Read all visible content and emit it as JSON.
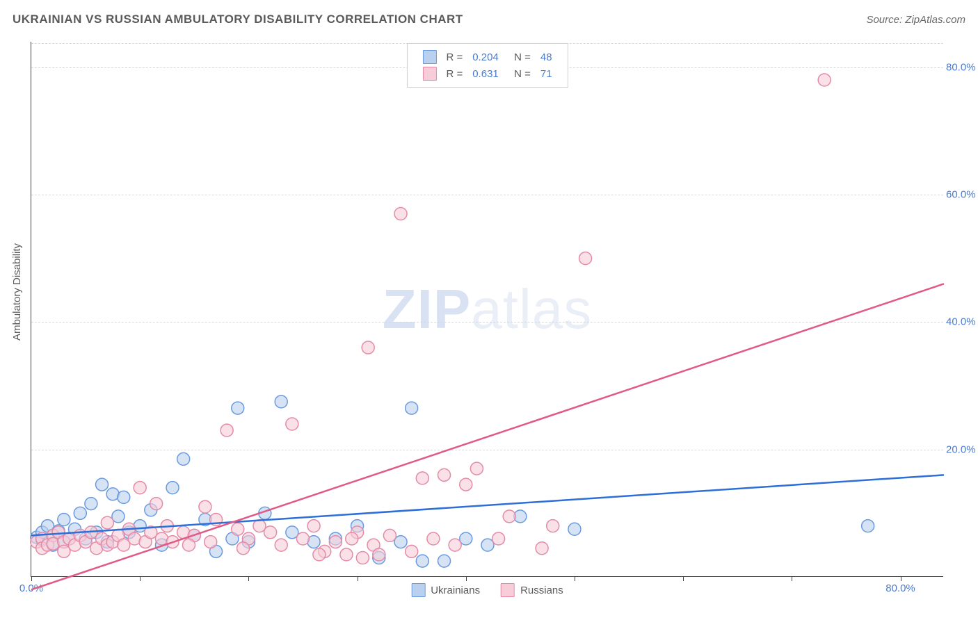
{
  "title": "UKRAINIAN VS RUSSIAN AMBULATORY DISABILITY CORRELATION CHART",
  "source_label": "Source: ZipAtlas.com",
  "y_axis_title": "Ambulatory Disability",
  "watermark_prefix": "ZIP",
  "watermark_suffix": "atlas",
  "chart": {
    "type": "scatter",
    "xlim": [
      0,
      84
    ],
    "ylim": [
      0,
      84
    ],
    "x_ticks": [
      0,
      10,
      20,
      30,
      40,
      50,
      60,
      70,
      80
    ],
    "x_tick_labels": {
      "0": "0.0%",
      "80": "80.0%"
    },
    "y_ticks": [
      20,
      40,
      60,
      80
    ],
    "y_tick_labels": {
      "20": "20.0%",
      "40": "40.0%",
      "60": "60.0%",
      "80": "80.0%"
    },
    "grid_color": "#d8d8d8",
    "axis_color": "#424242",
    "label_color": "#4a7bd0",
    "background_color": "#ffffff",
    "marker_radius": 9,
    "marker_stroke_width": 1.5,
    "line_width": 2.5,
    "series": [
      {
        "name": "Ukrainians",
        "fill_color": "#b9d0ef",
        "stroke_color": "#6a9ae0",
        "line_color": "#2d6fd6",
        "R": "0.204",
        "N": "48",
        "trend": {
          "x1": 0,
          "y1": 6.5,
          "x2": 84,
          "y2": 16.0
        },
        "points": [
          [
            0.5,
            6.2
          ],
          [
            1.0,
            5.8
          ],
          [
            1.0,
            7.0
          ],
          [
            1.5,
            8.0
          ],
          [
            2.0,
            5.0
          ],
          [
            2.0,
            6.5
          ],
          [
            2.5,
            7.2
          ],
          [
            3.0,
            5.5
          ],
          [
            3.0,
            9.0
          ],
          [
            3.5,
            6.0
          ],
          [
            4.0,
            7.5
          ],
          [
            4.5,
            10.0
          ],
          [
            5.0,
            6.0
          ],
          [
            5.5,
            11.5
          ],
          [
            6.0,
            7.0
          ],
          [
            6.5,
            14.5
          ],
          [
            7.0,
            5.5
          ],
          [
            7.5,
            13.0
          ],
          [
            8.0,
            9.5
          ],
          [
            8.5,
            12.5
          ],
          [
            9.0,
            7.0
          ],
          [
            10.0,
            8.0
          ],
          [
            11.0,
            10.5
          ],
          [
            12.0,
            5.0
          ],
          [
            13.0,
            14.0
          ],
          [
            14.0,
            18.5
          ],
          [
            15.0,
            6.5
          ],
          [
            16.0,
            9.0
          ],
          [
            17.0,
            4.0
          ],
          [
            18.5,
            6.0
          ],
          [
            19.0,
            26.5
          ],
          [
            20.0,
            5.5
          ],
          [
            21.5,
            10.0
          ],
          [
            23.0,
            27.5
          ],
          [
            24.0,
            7.0
          ],
          [
            26.0,
            5.5
          ],
          [
            28.0,
            6.0
          ],
          [
            30.0,
            8.0
          ],
          [
            32.0,
            3.0
          ],
          [
            34.0,
            5.5
          ],
          [
            35.0,
            26.5
          ],
          [
            36.0,
            2.5
          ],
          [
            38.0,
            2.5
          ],
          [
            40.0,
            6.0
          ],
          [
            42.0,
            5.0
          ],
          [
            45.0,
            9.5
          ],
          [
            50.0,
            7.5
          ],
          [
            77.0,
            8.0
          ]
        ]
      },
      {
        "name": "Russians",
        "fill_color": "#f7cdd9",
        "stroke_color": "#e58aa6",
        "line_color": "#e05a85",
        "R": "0.631",
        "N": "71",
        "trend": {
          "x1": 0,
          "y1": -2.0,
          "x2": 84,
          "y2": 46.0
        },
        "points": [
          [
            0.5,
            5.5
          ],
          [
            1.0,
            6.0
          ],
          [
            1.0,
            4.5
          ],
          [
            1.5,
            5.0
          ],
          [
            2.0,
            6.5
          ],
          [
            2.0,
            5.2
          ],
          [
            2.5,
            7.0
          ],
          [
            3.0,
            5.5
          ],
          [
            3.0,
            4.0
          ],
          [
            3.5,
            6.0
          ],
          [
            4.0,
            5.0
          ],
          [
            4.5,
            6.5
          ],
          [
            5.0,
            5.5
          ],
          [
            5.5,
            7.0
          ],
          [
            6.0,
            4.5
          ],
          [
            6.5,
            6.0
          ],
          [
            7.0,
            5.0
          ],
          [
            7.0,
            8.5
          ],
          [
            7.5,
            5.5
          ],
          [
            8.0,
            6.5
          ],
          [
            8.5,
            5.0
          ],
          [
            9.0,
            7.5
          ],
          [
            9.5,
            6.0
          ],
          [
            10.0,
            14.0
          ],
          [
            10.5,
            5.5
          ],
          [
            11.0,
            7.0
          ],
          [
            11.5,
            11.5
          ],
          [
            12.0,
            6.0
          ],
          [
            12.5,
            8.0
          ],
          [
            13.0,
            5.5
          ],
          [
            14.0,
            7.0
          ],
          [
            15.0,
            6.5
          ],
          [
            16.0,
            11.0
          ],
          [
            17.0,
            9.0
          ],
          [
            18.0,
            23.0
          ],
          [
            19.0,
            7.5
          ],
          [
            20.0,
            6.0
          ],
          [
            21.0,
            8.0
          ],
          [
            22.0,
            7.0
          ],
          [
            24.0,
            24.0
          ],
          [
            25.0,
            6.0
          ],
          [
            26.0,
            8.0
          ],
          [
            27.0,
            4.0
          ],
          [
            28.0,
            5.5
          ],
          [
            29.0,
            3.5
          ],
          [
            30.0,
            7.0
          ],
          [
            30.5,
            3.0
          ],
          [
            31.0,
            36.0
          ],
          [
            31.5,
            5.0
          ],
          [
            32.0,
            3.5
          ],
          [
            33.0,
            6.5
          ],
          [
            34.0,
            57.0
          ],
          [
            35.0,
            4.0
          ],
          [
            36.0,
            15.5
          ],
          [
            37.0,
            6.0
          ],
          [
            38.0,
            16.0
          ],
          [
            39.0,
            5.0
          ],
          [
            40.0,
            14.5
          ],
          [
            41.0,
            17.0
          ],
          [
            43.0,
            6.0
          ],
          [
            44.0,
            9.5
          ],
          [
            47.0,
            4.5
          ],
          [
            48.0,
            8.0
          ],
          [
            51.0,
            50.0
          ],
          [
            73.0,
            78.0
          ],
          [
            14.5,
            5.0
          ],
          [
            16.5,
            5.5
          ],
          [
            19.5,
            4.5
          ],
          [
            23.0,
            5.0
          ],
          [
            26.5,
            3.5
          ],
          [
            29.5,
            6.0
          ]
        ]
      }
    ]
  },
  "legend_top": {
    "r_label": "R =",
    "n_label": "N ="
  },
  "legend_bottom": [
    {
      "label": "Ukrainians",
      "fill": "#b9d0ef",
      "stroke": "#6a9ae0"
    },
    {
      "label": "Russians",
      "fill": "#f7cdd9",
      "stroke": "#e58aa6"
    }
  ]
}
